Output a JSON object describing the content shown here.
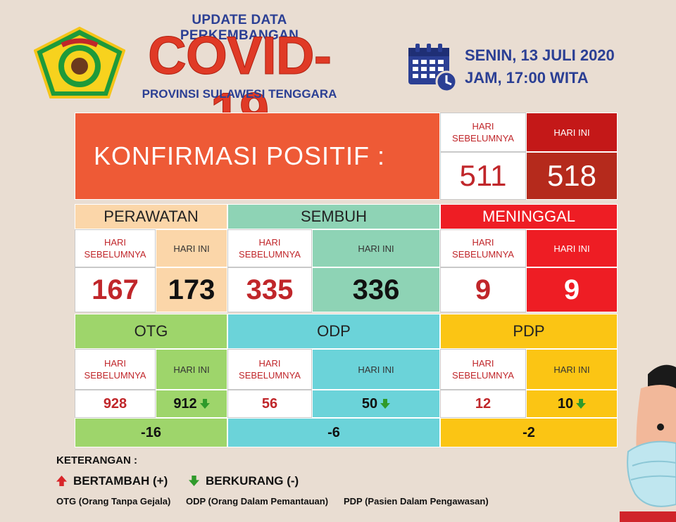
{
  "header": {
    "title_top": "UPDATE DATA PERKEMBANGAN",
    "title_main": "COVID-19",
    "title_sub": "PROVINSI SULAWESI TENGGARA",
    "logo_text": "SULAWESI TENGGARA",
    "date_line": "SENIN, 13 JULI 2020",
    "time_line": "JAM, 17:00 WITA"
  },
  "labels": {
    "prev": "HARI SEBELUMNYA",
    "today": "HARI INI"
  },
  "konfirmasi": {
    "title": "KONFIRMASI POSITIF :",
    "prev": "511",
    "today": "518"
  },
  "perawatan": {
    "title": "PERAWATAN",
    "prev": "167",
    "today": "173"
  },
  "sembuh": {
    "title": "SEMBUH",
    "prev": "335",
    "today": "336"
  },
  "meninggal": {
    "title": "MENINGGAL",
    "prev": "9",
    "today": "9"
  },
  "otg": {
    "title": "OTG",
    "prev": "928",
    "today": "912",
    "diff": "-16"
  },
  "odp": {
    "title": "ODP",
    "prev": "56",
    "today": "50",
    "diff": "-6"
  },
  "pdp": {
    "title": "PDP",
    "prev": "12",
    "today": "10",
    "diff": "-2"
  },
  "legend": {
    "title": "KETERANGAN :",
    "up": "BERTAMBAH (+)",
    "down": "BERKURANG (-)",
    "otg_def": "OTG (Orang Tanpa Gejala)",
    "odp_def": "ODP (Orang Dalam Pemantauan)",
    "pdp_def": "PDP (Pasien Dalam Pengawasan)"
  },
  "colors": {
    "konfirmasi": "#ee5a36",
    "today_dark": "#b52a1c",
    "perawatan": "#fbd6a9",
    "sembuh": "#8ed3b5",
    "meninggal": "#ee1d24",
    "otg": "#9ed56b",
    "odp": "#6bd3d9",
    "pdp": "#fbc514",
    "arrow_down": "#2f9a2a",
    "arrow_up": "#d8262a"
  }
}
